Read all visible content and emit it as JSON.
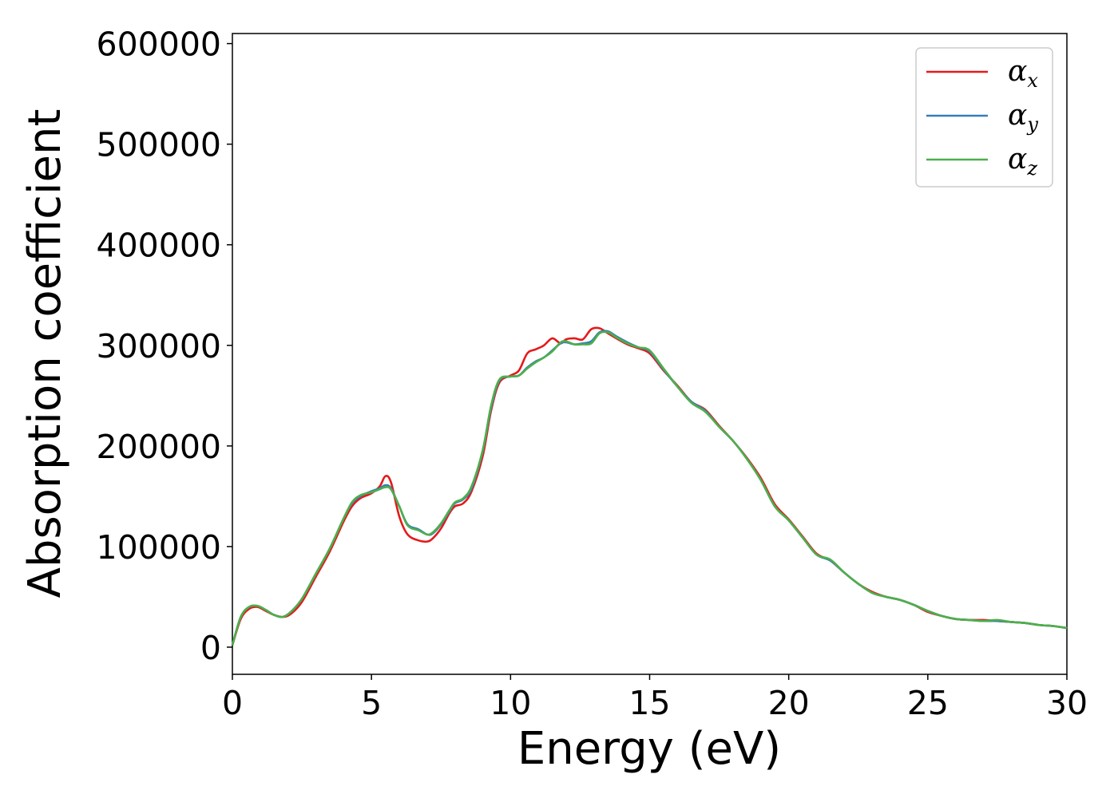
{
  "chart_data": {
    "type": "line",
    "xlabel": "Energy (eV)",
    "ylabel": "Absorption coefficient",
    "xlim": [
      0,
      30
    ],
    "ylim": [
      -27000,
      610000
    ],
    "xticks": [
      0,
      5,
      10,
      15,
      20,
      25,
      30
    ],
    "xtick_labels": [
      "0",
      "5",
      "10",
      "15",
      "20",
      "25",
      "30"
    ],
    "yticks": [
      0,
      100000,
      200000,
      300000,
      400000,
      500000,
      600000
    ],
    "ytick_labels": [
      "0",
      "100000",
      "200000",
      "300000",
      "400000",
      "500000",
      "600000"
    ],
    "grid": false,
    "legend": "top-right",
    "colors": {
      "alpha_x": "#e41a1c",
      "alpha_y": "#377eb8",
      "alpha_z": "#4daf4a"
    },
    "series": [
      {
        "name": "α_x",
        "symbol": "α",
        "sub": "x",
        "color": "#e41a1c",
        "x": [
          0,
          0.3,
          0.6,
          0.9,
          1.2,
          1.5,
          1.8,
          2.1,
          2.5,
          3.0,
          3.5,
          4.0,
          4.3,
          4.6,
          5.0,
          5.3,
          5.5,
          5.7,
          6.0,
          6.3,
          6.7,
          7.0,
          7.2,
          7.5,
          7.8,
          8.0,
          8.3,
          8.6,
          9.0,
          9.3,
          9.6,
          10.0,
          10.3,
          10.6,
          10.9,
          11.2,
          11.5,
          11.8,
          12.0,
          12.3,
          12.6,
          12.9,
          13.2,
          13.5,
          13.8,
          14.2,
          14.6,
          15.0,
          15.5,
          16.0,
          16.5,
          17.0,
          17.5,
          18.0,
          18.5,
          19.0,
          19.5,
          20.0,
          20.5,
          21.0,
          21.5,
          22.0,
          22.5,
          23.0,
          23.5,
          24.0,
          24.5,
          25.0,
          25.5,
          26.0,
          26.5,
          27.0,
          27.5,
          28.0,
          28.5,
          29.0,
          29.5,
          30.0
        ],
        "y": [
          2000,
          28000,
          38000,
          40000,
          36000,
          32000,
          30000,
          33000,
          45000,
          70000,
          95000,
          125000,
          140000,
          148000,
          153000,
          160000,
          170000,
          164000,
          130000,
          112000,
          106000,
          105000,
          108000,
          118000,
          133000,
          140000,
          143000,
          155000,
          190000,
          235000,
          263000,
          270000,
          275000,
          292000,
          296000,
          300000,
          307000,
          302000,
          306000,
          307000,
          306000,
          316000,
          317000,
          312000,
          307000,
          301000,
          297000,
          292000,
          275000,
          260000,
          244000,
          236000,
          220000,
          205000,
          188000,
          168000,
          142000,
          127000,
          110000,
          93000,
          86000,
          74000,
          63000,
          55000,
          50000,
          47000,
          42000,
          35000,
          31000,
          28000,
          27000,
          27000,
          26000,
          25000,
          24000,
          22000,
          21000,
          19000
        ]
      },
      {
        "name": "α_y",
        "symbol": "α",
        "sub": "y",
        "color": "#377eb8",
        "x": [
          0,
          0.3,
          0.6,
          0.9,
          1.2,
          1.5,
          1.8,
          2.1,
          2.5,
          3.0,
          3.5,
          4.0,
          4.3,
          4.6,
          5.0,
          5.3,
          5.5,
          5.7,
          6.0,
          6.3,
          6.7,
          7.0,
          7.2,
          7.5,
          7.8,
          8.0,
          8.3,
          8.6,
          9.0,
          9.3,
          9.6,
          10.0,
          10.3,
          10.6,
          10.9,
          11.2,
          11.5,
          11.8,
          12.0,
          12.3,
          12.6,
          12.9,
          13.2,
          13.5,
          13.8,
          14.2,
          14.6,
          15.0,
          15.5,
          16.0,
          16.5,
          17.0,
          17.5,
          18.0,
          18.5,
          19.0,
          19.5,
          20.0,
          20.5,
          21.0,
          21.5,
          22.0,
          22.5,
          23.0,
          23.5,
          24.0,
          24.5,
          25.0,
          25.5,
          26.0,
          26.5,
          27.0,
          27.5,
          28.0,
          28.5,
          29.0,
          29.5,
          30.0
        ],
        "y": [
          2000,
          30000,
          40000,
          41000,
          37000,
          32000,
          30000,
          35000,
          48000,
          73000,
          98000,
          128000,
          143000,
          150000,
          155000,
          158000,
          161000,
          158000,
          140000,
          122000,
          117000,
          112000,
          113000,
          122000,
          135000,
          143000,
          147000,
          158000,
          195000,
          238000,
          265000,
          269000,
          270000,
          278000,
          284000,
          288000,
          295000,
          302000,
          303000,
          301000,
          302000,
          304000,
          313000,
          314000,
          309000,
          303000,
          298000,
          294000,
          276000,
          259000,
          244000,
          235000,
          219000,
          205000,
          187000,
          166000,
          140000,
          126000,
          109000,
          92000,
          86000,
          74000,
          63000,
          54000,
          50000,
          47000,
          42000,
          36000,
          31000,
          28000,
          27000,
          26000,
          26000,
          25000,
          24000,
          22000,
          21000,
          19000
        ]
      },
      {
        "name": "α_z",
        "symbol": "α",
        "sub": "z",
        "color": "#4daf4a",
        "x": [
          0,
          0.3,
          0.6,
          0.9,
          1.2,
          1.5,
          1.8,
          2.1,
          2.5,
          3.0,
          3.5,
          4.0,
          4.3,
          4.6,
          5.0,
          5.3,
          5.5,
          5.7,
          6.0,
          6.3,
          6.7,
          7.0,
          7.2,
          7.5,
          7.8,
          8.0,
          8.3,
          8.6,
          9.0,
          9.3,
          9.6,
          10.0,
          10.3,
          10.6,
          10.9,
          11.2,
          11.5,
          11.8,
          12.0,
          12.3,
          12.6,
          12.9,
          13.2,
          13.5,
          13.8,
          14.2,
          14.6,
          15.0,
          15.5,
          16.0,
          16.5,
          17.0,
          17.5,
          18.0,
          18.5,
          19.0,
          19.5,
          20.0,
          20.5,
          21.0,
          21.5,
          22.0,
          22.5,
          23.0,
          23.5,
          24.0,
          24.5,
          25.0,
          25.5,
          26.0,
          26.5,
          27.0,
          27.5,
          28.0,
          28.5,
          29.0,
          29.5,
          30.0
        ],
        "y": [
          2000,
          30000,
          40000,
          41000,
          37000,
          32000,
          30000,
          35000,
          48000,
          73000,
          98000,
          128000,
          144000,
          151000,
          154000,
          157000,
          159000,
          157000,
          140000,
          121000,
          116000,
          112000,
          114000,
          123000,
          136000,
          144000,
          148000,
          160000,
          196000,
          240000,
          266000,
          269000,
          270000,
          277000,
          283000,
          288000,
          294000,
          303000,
          304000,
          301000,
          301000,
          302000,
          312000,
          313000,
          308000,
          302000,
          298000,
          295000,
          277000,
          259000,
          243000,
          234000,
          219000,
          205000,
          187000,
          166000,
          140000,
          126000,
          109000,
          92000,
          87000,
          74000,
          63000,
          54000,
          50000,
          47000,
          42000,
          36000,
          31000,
          28000,
          27000,
          26000,
          27000,
          25000,
          24000,
          22000,
          21000,
          19000
        ]
      }
    ]
  }
}
